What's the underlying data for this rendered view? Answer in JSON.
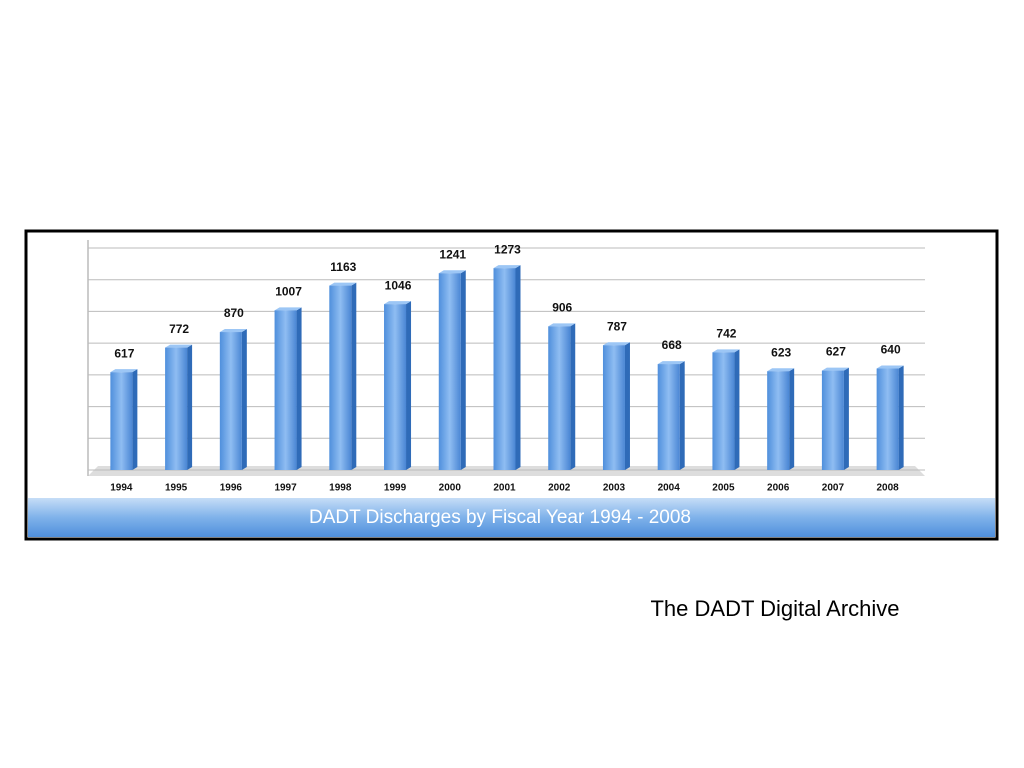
{
  "chart_data": {
    "type": "bar",
    "title": "DADT Discharges by Fiscal Year 1994 - 2008",
    "caption": "The DADT Digital Archive",
    "categories": [
      "1994",
      "1995",
      "1996",
      "1997",
      "1998",
      "1999",
      "2000",
      "2001",
      "2002",
      "2003",
      "2004",
      "2005",
      "2006",
      "2007",
      "2008"
    ],
    "values": [
      617,
      772,
      870,
      1007,
      1163,
      1046,
      1241,
      1273,
      906,
      787,
      668,
      742,
      623,
      627,
      640
    ],
    "color": "#5b9be6",
    "ylim": [
      0,
      1400
    ],
    "yticks": [
      0,
      200,
      400,
      600,
      800,
      1000,
      1200,
      1400
    ],
    "grid": true
  }
}
